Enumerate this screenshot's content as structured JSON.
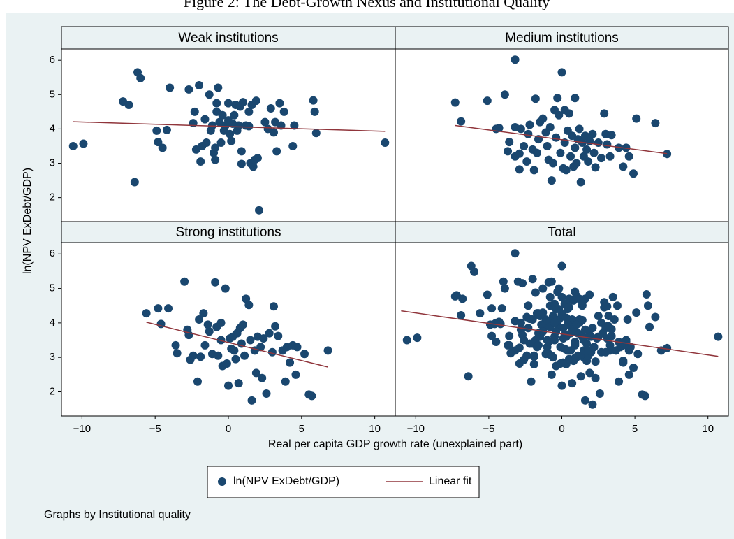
{
  "chart_data": {
    "type": "scatter",
    "title": "Figure 2: The Debt-Growth Nexus and Institutional Quality",
    "xlabel": "Real per capita GDP growth rate (unexplained part)",
    "ylabel": "ln(NPV ExDebt/GDP)",
    "xlim": [
      -11.4,
      11.4
    ],
    "xticks": [
      {
        "value": -10,
        "label": "−10"
      },
      {
        "value": -5,
        "label": "−5"
      },
      0,
      5,
      10
    ],
    "ylim": [
      1.3,
      6.33
    ],
    "yticks": [
      2,
      3,
      4,
      5,
      6
    ],
    "marker_color": "#1a476f",
    "fit_color": "#90353b",
    "series_names": [
      "ln(NPV ExDebt/GDP)",
      "Linear fit"
    ],
    "note": "Graphs by Institutional quality",
    "panels": [
      {
        "title": "Weak institutions",
        "x": [
          -10.6,
          -9.9,
          -7.2,
          -6.8,
          -6.4,
          -6.2,
          -6.0,
          -4.9,
          -4.8,
          -4.5,
          -4.2,
          -4.0,
          -2.7,
          -2.4,
          -2.3,
          -2.2,
          -2.0,
          -1.9,
          -1.8,
          -1.6,
          -1.5,
          -1.3,
          -1.2,
          -1.1,
          -1.0,
          -0.9,
          -0.9,
          -0.8,
          -0.8,
          -0.7,
          -0.6,
          -0.5,
          -0.4,
          -0.3,
          -0.2,
          0,
          0,
          0.1,
          0.2,
          0.3,
          0.4,
          0.5,
          0.6,
          0.7,
          0.8,
          0.9,
          0.9,
          1.0,
          1.2,
          1.4,
          1.5,
          1.4,
          1.6,
          1.7,
          1.8,
          1.9,
          2.0,
          2.1,
          2.5,
          2.7,
          2.9,
          3.1,
          3.2,
          3.3,
          3.5,
          3.6,
          3.8,
          4.4,
          4.5,
          5.8,
          5.9,
          6.0,
          10.7
        ],
        "y": [
          3.5,
          3.57,
          4.8,
          4.7,
          2.45,
          5.65,
          5.48,
          3.95,
          3.62,
          3.45,
          3.97,
          5.2,
          5.15,
          4.17,
          4.5,
          3.4,
          5.27,
          3.05,
          3.5,
          4.28,
          3.6,
          5.0,
          3.95,
          4.1,
          3.3,
          3.1,
          3.45,
          4.5,
          4.75,
          5.2,
          4.2,
          3.6,
          4.4,
          3.95,
          4.1,
          4.75,
          4.25,
          3.85,
          3.65,
          4.15,
          4.4,
          4.7,
          3.95,
          4.1,
          4.65,
          3.35,
          2.98,
          4.78,
          4.1,
          4.08,
          3.0,
          4.5,
          4.7,
          2.9,
          3.1,
          4.82,
          3.15,
          1.63,
          4.2,
          4.0,
          4.6,
          3.9,
          4.2,
          3.35,
          4.75,
          4.1,
          4.5,
          3.5,
          4.1,
          4.83,
          4.5,
          3.88,
          3.6
        ],
        "fit_x": [
          -10.6,
          10.7
        ],
        "fit_y": [
          4.21,
          3.93
        ]
      },
      {
        "title": "Medium institutions",
        "x": [
          -7.3,
          -6.9,
          -5.1,
          -4.5,
          -4.3,
          -3.9,
          -3.7,
          -3.6,
          -3.2,
          -3.2,
          -3.2,
          -2.9,
          -2.9,
          -2.8,
          -2.6,
          -2.4,
          -2.3,
          -2.2,
          -2.0,
          -1.9,
          -1.8,
          -1.7,
          -1.6,
          -1.5,
          -1.3,
          -1.1,
          -1.0,
          -0.9,
          -0.8,
          -0.7,
          -0.6,
          -0.5,
          -0.4,
          -0.3,
          -0.2,
          -0.1,
          0,
          0.1,
          0.2,
          0.2,
          0.3,
          0.4,
          0.5,
          0.6,
          0.7,
          0.8,
          0.9,
          0.9,
          1.0,
          1.1,
          1.2,
          1.3,
          1.4,
          1.5,
          1.6,
          1.7,
          1.8,
          1.9,
          2.1,
          2.2,
          2.3,
          2.5,
          2.7,
          2.9,
          3.0,
          3.1,
          3.3,
          3.4,
          3.9,
          4.2,
          4.4,
          4.6,
          4.9,
          5.1,
          6.4,
          7.2
        ],
        "y": [
          4.77,
          4.22,
          4.82,
          4.0,
          4.03,
          5.0,
          3.35,
          3.62,
          6.02,
          4.05,
          3.2,
          2.82,
          3.28,
          4.0,
          3.5,
          3.05,
          3.85,
          4.12,
          3.4,
          2.8,
          4.88,
          3.3,
          3.7,
          4.2,
          4.3,
          3.9,
          3.5,
          3.1,
          4.05,
          2.5,
          3.0,
          4.55,
          3.75,
          4.9,
          4.4,
          3.3,
          5.65,
          2.85,
          3.6,
          4.55,
          2.8,
          3.95,
          4.45,
          3.2,
          3.8,
          2.9,
          4.9,
          3.45,
          3.0,
          3.7,
          4.0,
          2.45,
          3.6,
          3.2,
          3.8,
          3.4,
          3.05,
          3.65,
          3.85,
          3.3,
          2.88,
          3.6,
          3.15,
          4.45,
          3.85,
          3.55,
          3.2,
          3.82,
          3.45,
          2.9,
          3.45,
          3.2,
          2.7,
          4.3,
          4.17,
          3.27
        ],
        "fit_x": [
          -7.3,
          7.2
        ],
        "fit_y": [
          4.1,
          3.28
        ]
      },
      {
        "title": "Strong institutions",
        "x": [
          -5.6,
          -4.8,
          -4.6,
          -4.1,
          -3.6,
          -3.5,
          -3.0,
          -2.8,
          -2.7,
          -2.6,
          -2.4,
          -2.1,
          -2.0,
          -1.9,
          -1.7,
          -1.6,
          -1.4,
          -1.3,
          -1.1,
          -0.9,
          -0.8,
          -0.7,
          -0.5,
          -0.5,
          -0.4,
          -0.2,
          -0.1,
          0,
          0.1,
          0.2,
          0.3,
          0.4,
          0.5,
          0.6,
          0.7,
          0.8,
          0.9,
          1.0,
          1.1,
          1.2,
          1.4,
          1.5,
          1.6,
          1.8,
          1.9,
          2.0,
          2.2,
          2.3,
          2.4,
          2.6,
          2.8,
          3.0,
          3.1,
          3.2,
          3.4,
          3.7,
          3.9,
          4.0,
          4.2,
          4.4,
          4.6,
          4.7,
          5.2,
          5.5,
          5.7,
          6.8
        ],
        "y": [
          4.28,
          4.42,
          3.97,
          4.42,
          3.35,
          3.12,
          5.2,
          3.8,
          3.65,
          2.93,
          3.05,
          2.3,
          4.1,
          3.02,
          4.28,
          3.35,
          3.95,
          3.75,
          3.1,
          5.18,
          3.88,
          3.05,
          4.0,
          3.5,
          2.75,
          5.0,
          2.82,
          2.18,
          3.55,
          3.25,
          3.6,
          3.2,
          2.95,
          3.7,
          2.25,
          3.85,
          3.4,
          3.95,
          3.05,
          4.7,
          4.52,
          3.5,
          1.75,
          3.2,
          2.55,
          3.6,
          3.3,
          2.4,
          3.55,
          1.95,
          3.7,
          3.15,
          4.48,
          3.9,
          3.62,
          3.2,
          2.3,
          3.3,
          2.85,
          3.35,
          2.5,
          3.3,
          3.1,
          1.92,
          1.88,
          3.2
        ],
        "fit_x": [
          -5.6,
          6.8
        ],
        "fit_y": [
          4.02,
          2.72
        ]
      },
      {
        "title": "Total",
        "fit_x": [
          -11.0,
          10.7
        ],
        "fit_y": [
          4.35,
          3.03
        ]
      }
    ]
  }
}
